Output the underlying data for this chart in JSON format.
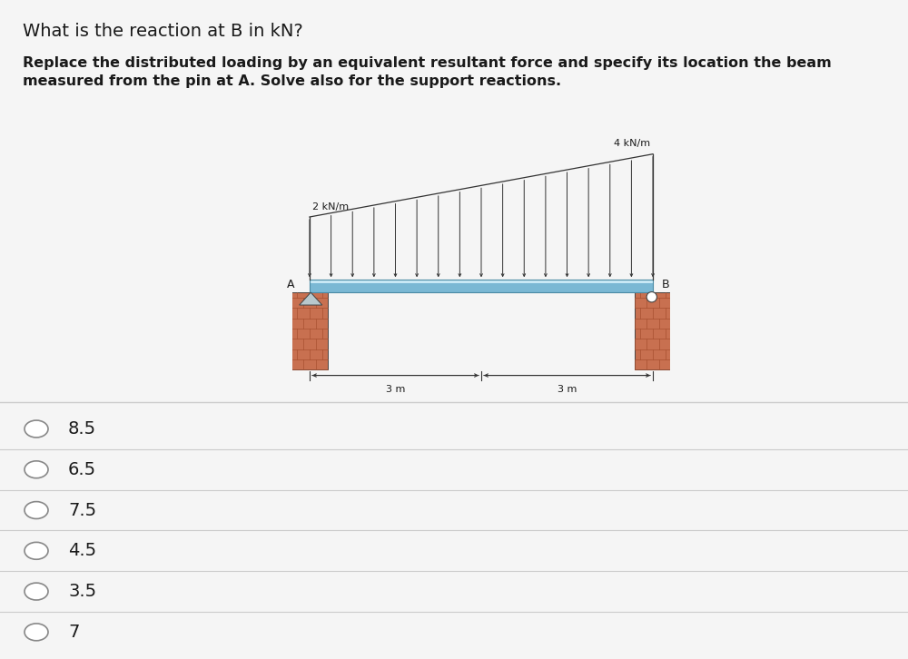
{
  "title": "What is the reaction at B in kN?",
  "subtitle_line1": "Replace the distributed loading by an equivalent resultant force and specify its location the beam",
  "subtitle_line2": "measured from the pin at A. Solve also for the support reactions.",
  "label_2kn": "2 kN/m",
  "label_4kn": "4 kN/m",
  "label_A": "A",
  "label_B": "B",
  "label_3m_left": "3 m",
  "label_3m_right": "3 m",
  "options": [
    "8.5",
    "6.5",
    "7.5",
    "4.5",
    "3.5",
    "7"
  ],
  "bg_color": "#f5f5f5",
  "beam_color_top": "#b8daea",
  "beam_color_main": "#7ab8d4",
  "beam_color_bottom": "#5a98b4",
  "brick_color": "#c87050",
  "brick_line_color": "#a85030",
  "line_color": "#333333",
  "arrow_color": "#333333",
  "title_fontsize": 14,
  "subtitle_fontsize": 11.5,
  "option_fontsize": 14,
  "sep_color": "#cccccc",
  "text_color": "#1a1a1a"
}
